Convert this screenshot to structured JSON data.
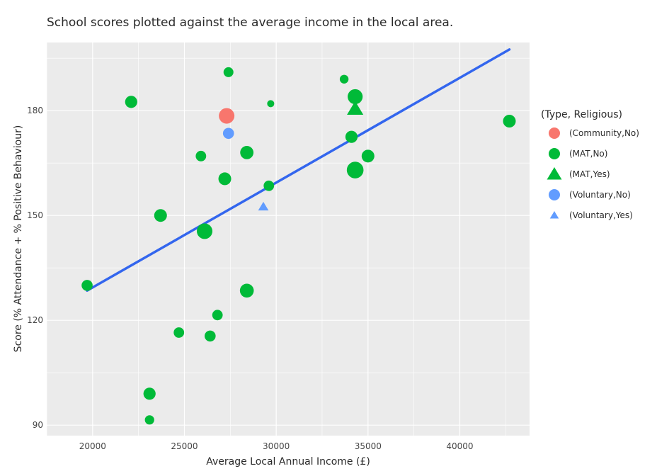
{
  "chart_data": {
    "type": "scatter",
    "title": "School scores plotted against the average income in the local area.",
    "xlabel": "Average Local Annual Income (£)",
    "ylabel": "Score (% Attendance + % Positive Behaviour)",
    "xlim": [
      17500,
      43800
    ],
    "ylim": [
      87,
      199.5
    ],
    "xticks": [
      20000,
      25000,
      30000,
      35000,
      40000
    ],
    "yticks": [
      90,
      120,
      150,
      180
    ],
    "grid": true,
    "plot_background": "#ebebeb",
    "legend": {
      "title": "(Type, Religious)",
      "placement": "right",
      "entries": [
        {
          "label": "(Community,No)",
          "color": "#f8766d",
          "shape": "circle"
        },
        {
          "label": "(MAT,No)",
          "color": "#00ba38",
          "shape": "circle"
        },
        {
          "label": "(MAT,Yes)",
          "color": "#00ba38",
          "shape": "triangle"
        },
        {
          "label": "(Voluntary,No)",
          "color": "#619cff",
          "shape": "circle"
        },
        {
          "label": "(Voluntary,Yes)",
          "color": "#619cff",
          "shape": "triangle"
        }
      ]
    },
    "series": [
      {
        "name": "(Community,No)",
        "color": "#f8766d",
        "shape": "circle",
        "points": [
          {
            "x": 27300,
            "y": 178.5,
            "size": 1.0
          }
        ]
      },
      {
        "name": "(MAT,No)",
        "color": "#00ba38",
        "shape": "circle",
        "points": [
          {
            "x": 19700,
            "y": 130,
            "size": 0.6
          },
          {
            "x": 22100,
            "y": 182.5,
            "size": 0.7
          },
          {
            "x": 23100,
            "y": 99,
            "size": 0.7
          },
          {
            "x": 23100,
            "y": 91.5,
            "size": 0.45
          },
          {
            "x": 23700,
            "y": 150,
            "size": 0.75
          },
          {
            "x": 24700,
            "y": 116.5,
            "size": 0.55
          },
          {
            "x": 25900,
            "y": 167,
            "size": 0.55
          },
          {
            "x": 26100,
            "y": 145.5,
            "size": 1.0
          },
          {
            "x": 26400,
            "y": 115.5,
            "size": 0.6
          },
          {
            "x": 26800,
            "y": 121.5,
            "size": 0.55
          },
          {
            "x": 27200,
            "y": 160.5,
            "size": 0.75
          },
          {
            "x": 27400,
            "y": 191,
            "size": 0.5
          },
          {
            "x": 28400,
            "y": 168,
            "size": 0.8
          },
          {
            "x": 28400,
            "y": 128.5,
            "size": 0.85
          },
          {
            "x": 29600,
            "y": 158.5,
            "size": 0.55
          },
          {
            "x": 29700,
            "y": 182,
            "size": 0.25
          },
          {
            "x": 33700,
            "y": 189,
            "size": 0.4
          },
          {
            "x": 34100,
            "y": 172.5,
            "size": 0.7
          },
          {
            "x": 34300,
            "y": 184,
            "size": 0.95
          },
          {
            "x": 34300,
            "y": 163,
            "size": 1.1
          },
          {
            "x": 35000,
            "y": 167,
            "size": 0.75
          },
          {
            "x": 42700,
            "y": 177,
            "size": 0.75
          }
        ]
      },
      {
        "name": "(MAT,Yes)",
        "color": "#00ba38",
        "shape": "triangle",
        "points": [
          {
            "x": 34300,
            "y": 180.5,
            "size": 1.0
          }
        ]
      },
      {
        "name": "(Voluntary,No)",
        "color": "#619cff",
        "shape": "circle",
        "points": [
          {
            "x": 27400,
            "y": 173.5,
            "size": 0.6
          }
        ]
      },
      {
        "name": "(Voluntary,Yes)",
        "color": "#619cff",
        "shape": "triangle",
        "points": [
          {
            "x": 29300,
            "y": 152.5,
            "size": 0.5
          }
        ]
      }
    ],
    "trend_line": {
      "color": "#3366ee",
      "x": [
        19700,
        42700
      ],
      "y": [
        128.5,
        197.5
      ]
    }
  }
}
